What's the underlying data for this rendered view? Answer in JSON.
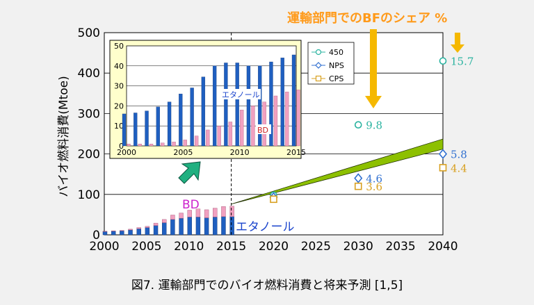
{
  "caption": "図7. 運輸部門でのバイオ燃料消費と将来予測 [1,5]",
  "bf_share_title": "運輸部門でのBFのシェア %",
  "colors": {
    "ethanol": "#1f5fc0",
    "bd": "#f0a0c0",
    "s450": "#2ab3a0",
    "nps": "#2f6fd0",
    "cps": "#d8a020",
    "arrow_gold": "#f5b800",
    "arrow_green": "#20b080",
    "wedge": "#8dc000",
    "title_orange": "#ff9a1a",
    "inset_bg": "#ffffcc"
  },
  "chart_data": [
    {
      "type": "bar",
      "name": "main",
      "ylabel": "バイオ燃料消費(Mtoe)",
      "ylim": [
        0,
        500
      ],
      "yticks": [
        0,
        100,
        200,
        300,
        400,
        500
      ],
      "xlim": [
        2000,
        2040
      ],
      "xticks": [
        2000,
        2005,
        2010,
        2015,
        2020,
        2025,
        2030,
        2035,
        2040
      ],
      "grid": "horizontal",
      "stacked": true,
      "historical": {
        "x": [
          2000,
          2001,
          2002,
          2003,
          2004,
          2005,
          2006,
          2007,
          2008,
          2009,
          2010,
          2011,
          2012,
          2013,
          2014,
          2015
        ],
        "series": [
          {
            "name": "エタノール",
            "values": [
              8,
              9,
              10,
              12,
              15,
              18,
              23,
              30,
              38,
              41,
              44,
              44,
              42,
              44,
              45,
              45
            ]
          },
          {
            "name": "BD",
            "values": [
              1,
              1,
              1,
              2,
              3,
              3,
              6,
              8,
              11,
              13,
              17,
              20,
              20,
              22,
              25,
              26
            ]
          }
        ]
      },
      "labels": {
        "ethanol": "エタノール",
        "bd": "BD"
      },
      "scenarios": [
        {
          "name": "450",
          "marker": "circle",
          "points": [
            {
              "x": 2020,
              "y": 98
            },
            {
              "x": 2030,
              "y": 272,
              "share": "9.8"
            },
            {
              "x": 2040,
              "y": 430,
              "share": "15.7"
            }
          ]
        },
        {
          "name": "NPS",
          "marker": "diamond",
          "points": [
            {
              "x": 2020,
              "y": 93
            },
            {
              "x": 2030,
              "y": 140,
              "share": "4.6"
            },
            {
              "x": 2040,
              "y": 200,
              "share": "5.8"
            }
          ]
        },
        {
          "name": "CPS",
          "marker": "square",
          "points": [
            {
              "x": 2020,
              "y": 88
            },
            {
              "x": 2030,
              "y": 120,
              "share": "3.6"
            },
            {
              "x": 2040,
              "y": 166,
              "share": "4.4"
            }
          ]
        }
      ],
      "projection_band": {
        "start": {
          "x": 2015,
          "y": 76
        },
        "end_x": 2040,
        "end_low": 212,
        "end_high": 237
      },
      "legend": "inset-top-right"
    },
    {
      "type": "bar",
      "name": "inset",
      "ylim": [
        0,
        50
      ],
      "yticks": [
        0,
        10,
        20,
        30,
        40,
        50
      ],
      "xlim": [
        2000,
        2015
      ],
      "xticks": [
        2000,
        2005,
        2010,
        2015
      ],
      "labels": {
        "ethanol": "エタノール",
        "bd": "BD"
      },
      "series": [
        {
          "name": "エタノール",
          "x": [
            2000,
            2001,
            2002,
            2003,
            2004,
            2005,
            2006,
            2007,
            2008,
            2009,
            2010,
            2011,
            2012,
            2013,
            2014,
            2015
          ],
          "values": [
            16,
            16.5,
            17.5,
            19.5,
            22,
            26,
            29,
            34.5,
            40,
            41.5,
            41.5,
            40,
            40,
            42,
            44,
            45.5
          ]
        },
        {
          "name": "BD",
          "x": [
            2000,
            2001,
            2002,
            2003,
            2004,
            2005,
            2006,
            2007,
            2008,
            2009,
            2010,
            2011,
            2012,
            2013,
            2014,
            2015
          ],
          "values": [
            1,
            1,
            1,
            1.5,
            2,
            3,
            5,
            8,
            10,
            12,
            18,
            20,
            22,
            25,
            27,
            28
          ]
        }
      ]
    }
  ]
}
